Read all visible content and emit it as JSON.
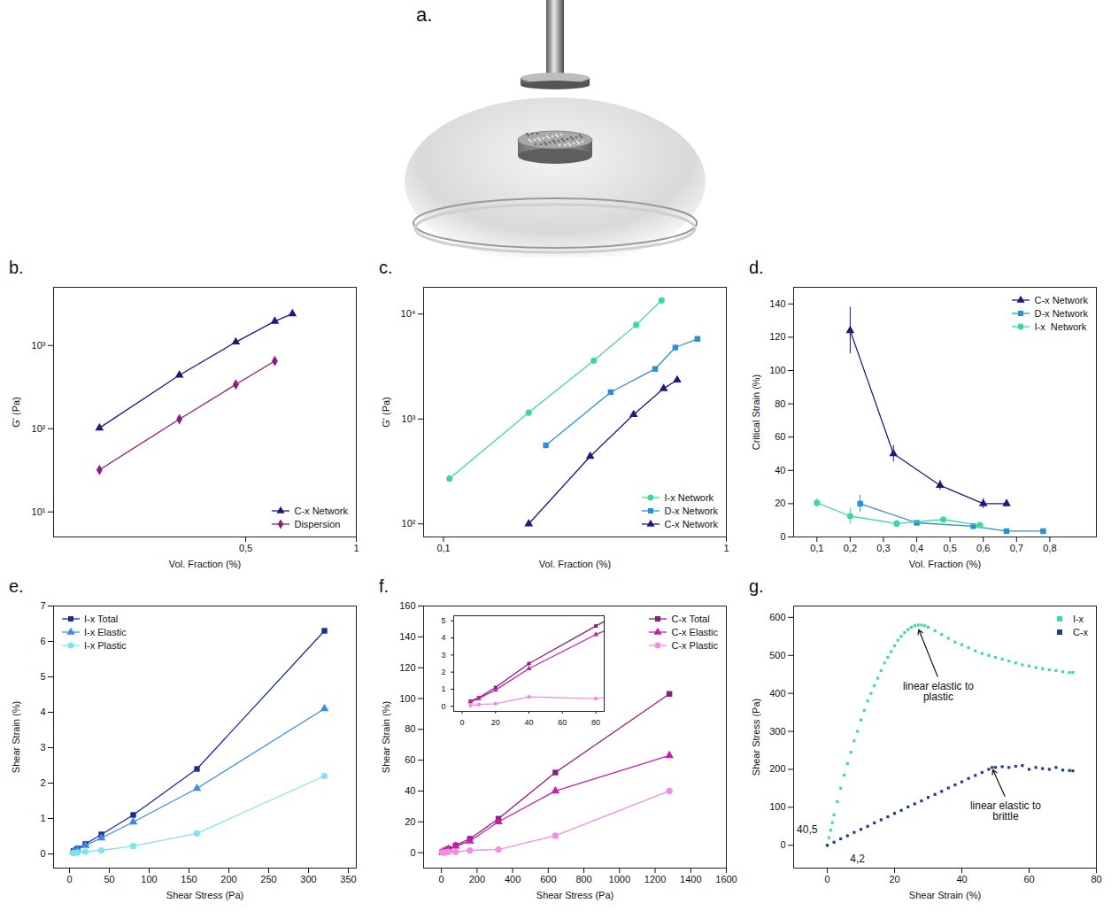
{
  "illustration": {
    "panel_label": "a."
  },
  "chart_data": [
    {
      "panel_label": "b.",
      "type": "line",
      "log": true,
      "xlabel": "Vol. Fraction (%)",
      "ylabel": "G' (Pa)",
      "xlim": [
        0.15,
        1
      ],
      "ylim": [
        5,
        5000
      ],
      "xticks": [
        {
          "value": 0.5,
          "label": "0,5"
        },
        1
      ],
      "yticks": [
        {
          "value": 10,
          "label": "10¹"
        },
        {
          "value": 100,
          "label": "10²"
        },
        {
          "value": 1000,
          "label": "10³"
        }
      ],
      "legend": "bottom right",
      "series": [
        {
          "name": "C-x Network",
          "color": "#1b1b7d",
          "marker": "triangle",
          "x": [
            0.2,
            0.33,
            0.47,
            0.6,
            0.67
          ],
          "values": [
            102,
            440,
            1100,
            1950,
            2400
          ]
        },
        {
          "name": "Dispersion",
          "color": "#8e1b7e",
          "marker": "diamond",
          "x": [
            0.2,
            0.33,
            0.47,
            0.6
          ],
          "values": [
            32,
            130,
            340,
            650
          ]
        }
      ]
    },
    {
      "panel_label": "c.",
      "type": "line",
      "log": true,
      "xlabel": "Vol. Fraction (%)",
      "ylabel": "G' (Pa)",
      "xlim": [
        0.085,
        1
      ],
      "ylim": [
        75,
        18000
      ],
      "xticks": [
        {
          "value": 0.1,
          "label": "0,1"
        },
        1
      ],
      "yticks": [
        {
          "value": 100,
          "label": "10²"
        },
        {
          "value": 1000,
          "label": "10³"
        },
        {
          "value": 10000,
          "label": "10⁴"
        }
      ],
      "legend": "bottom right",
      "series": [
        {
          "name": "I-x Network",
          "color": "#3fd89c",
          "marker": "circle",
          "x": [
            0.105,
            0.2,
            0.34,
            0.48,
            0.59
          ],
          "values": [
            270,
            1150,
            3600,
            7900,
            13500
          ]
        },
        {
          "name": "D-x Network",
          "color": "#2b8fd4",
          "marker": "square",
          "x": [
            0.23,
            0.39,
            0.56,
            0.66,
            0.79
          ],
          "values": [
            560,
            1800,
            3000,
            4800,
            5800
          ]
        },
        {
          "name": "C-x Network",
          "color": "#1b1b7d",
          "marker": "triangle",
          "x": [
            0.2,
            0.33,
            0.47,
            0.6,
            0.67
          ],
          "values": [
            100,
            440,
            1100,
            1950,
            2350
          ]
        }
      ]
    },
    {
      "panel_label": "d.",
      "type": "line",
      "xlabel": "Vol. Fraction (%)",
      "ylabel": "Critical Strain (%)",
      "xlim": [
        0.03,
        0.94
      ],
      "ylim": [
        0,
        150
      ],
      "xticks": [
        {
          "value": 0.1,
          "label": "0,1"
        },
        {
          "value": 0.2,
          "label": "0,2"
        },
        {
          "value": 0.3,
          "label": "0,3"
        },
        {
          "value": 0.4,
          "label": "0,4"
        },
        {
          "value": 0.5,
          "label": "0,5"
        },
        {
          "value": 0.6,
          "label": "0,6"
        },
        {
          "value": 0.7,
          "label": "0,7"
        },
        {
          "value": 0.8,
          "label": "0,8"
        }
      ],
      "yticks": [
        0,
        20,
        40,
        60,
        80,
        100,
        120,
        140
      ],
      "legend": "top right",
      "series": [
        {
          "name": "C-x Network",
          "color": "#1b1b7d",
          "marker": "triangle",
          "x": [
            0.2,
            0.33,
            0.47,
            0.6,
            0.67
          ],
          "values": [
            124,
            50,
            31,
            20,
            20
          ],
          "errors": [
            14,
            5,
            3,
            3,
            2
          ]
        },
        {
          "name": "D-x Network",
          "color": "#2b8fd4",
          "marker": "square",
          "x": [
            0.23,
            0.4,
            0.57,
            0.67,
            0.78
          ],
          "values": [
            20,
            8.5,
            6.5,
            3.5,
            3.5
          ],
          "errors": [
            5,
            1,
            1,
            0.5,
            0.5
          ]
        },
        {
          "name": "I-x  Network",
          "color": "#3fd89c",
          "marker": "circle",
          "x": [
            0.1,
            0.2,
            0.34,
            0.48,
            0.59
          ],
          "values": [
            20.5,
            12.5,
            8,
            10.5,
            7
          ],
          "errors": [
            2.5,
            5,
            2,
            1.5,
            2
          ]
        }
      ]
    },
    {
      "panel_label": "e.",
      "type": "line",
      "xlabel": "Shear Stress (Pa)",
      "ylabel": "Shear Strain (%)",
      "xlim": [
        -20,
        360
      ],
      "ylim": [
        -0.4,
        7
      ],
      "xticks": [
        0,
        50,
        100,
        150,
        200,
        250,
        300,
        350
      ],
      "yticks": [
        0,
        1,
        2,
        3,
        4,
        5,
        6,
        7
      ],
      "legend": "top left",
      "series": [
        {
          "name": "I-x Total",
          "color": "#1c2a9c",
          "marker": "square",
          "x": [
            5,
            10,
            20,
            40,
            80,
            160,
            320
          ],
          "values": [
            0.08,
            0.15,
            0.28,
            0.55,
            1.1,
            2.4,
            6.3
          ]
        },
        {
          "name": "I-x Elastic",
          "color": "#3a8ee0",
          "marker": "triangle",
          "x": [
            5,
            10,
            20,
            40,
            80,
            160,
            320
          ],
          "values": [
            0.07,
            0.12,
            0.24,
            0.45,
            0.9,
            1.85,
            4.1
          ]
        },
        {
          "name": "I-x Plastic",
          "color": "#7fe3f5",
          "marker": "circle",
          "x": [
            5,
            10,
            20,
            40,
            80,
            160,
            320
          ],
          "values": [
            0.02,
            0.04,
            0.06,
            0.1,
            0.22,
            0.58,
            2.2
          ]
        }
      ]
    },
    {
      "panel_label": "f.",
      "type": "line",
      "xlabel": "Shear Stress (Pa)",
      "ylabel": "Shear Strain (%)",
      "xlim": [
        -100,
        1600
      ],
      "ylim": [
        -10,
        160
      ],
      "xticks": [
        0,
        200,
        400,
        600,
        800,
        1000,
        1200,
        1400,
        1600
      ],
      "yticks": [
        0,
        20,
        40,
        60,
        80,
        100,
        120,
        140,
        160
      ],
      "legend": "top right",
      "inset": {
        "xlim": [
          -5,
          85
        ],
        "ylim": [
          -0.3,
          5.3
        ],
        "xticks": [
          0,
          20,
          40,
          60,
          80
        ],
        "yticks": [
          0,
          1,
          2,
          3,
          4,
          5
        ]
      },
      "series": [
        {
          "name": "C-x Total",
          "color": "#8e1b7e",
          "marker": "square",
          "x": [
            5,
            10,
            20,
            40,
            80,
            160,
            320,
            640,
            1280
          ],
          "values": [
            0.3,
            0.5,
            1.1,
            2.5,
            4.7,
            9,
            22,
            52,
            103
          ]
        },
        {
          "name": "C-x Elastic",
          "color": "#c51fae",
          "marker": "triangle",
          "x": [
            5,
            10,
            20,
            40,
            80,
            160,
            320,
            640,
            1280
          ],
          "values": [
            0.25,
            0.45,
            0.95,
            2.2,
            4.2,
            7.5,
            20,
            40,
            63
          ]
        },
        {
          "name": "C-x Plastic",
          "color": "#f28de3",
          "marker": "circle",
          "x": [
            5,
            10,
            20,
            40,
            80,
            160,
            320,
            640,
            1280
          ],
          "values": [
            0.05,
            0.1,
            0.15,
            0.55,
            0.45,
            1.5,
            2,
            11,
            40
          ]
        }
      ]
    },
    {
      "panel_label": "g.",
      "type": "scatter",
      "xlabel": "Shear Strain (%)",
      "ylabel": "Shear Stress (Pa)",
      "xlim": [
        -10,
        80
      ],
      "ylim": [
        -60,
        630
      ],
      "xticks": [
        0,
        20,
        40,
        60,
        80
      ],
      "yticks": [
        0,
        100,
        200,
        300,
        400,
        500,
        600
      ],
      "legend": "top right",
      "annotations": [
        {
          "text": "linear elastic to plastic",
          "x": 33,
          "y": 440,
          "arrow_to": [
            27,
            572
          ]
        },
        {
          "text": "linear elastic to brittle",
          "x": 53,
          "y": 125,
          "arrow_to": [
            49,
            203
          ]
        },
        {
          "text": "40,5",
          "x": -6,
          "y": 40
        },
        {
          "text": "4,2",
          "x": 9,
          "y": -35
        }
      ],
      "series": [
        {
          "name": "I-x",
          "color": "#3ddc9c",
          "marker": "square",
          "x": [
            0,
            0.5,
            1,
            1.5,
            2,
            3,
            4,
            5,
            6,
            7,
            8,
            9,
            10,
            11,
            12,
            13,
            14,
            15,
            16,
            17,
            18,
            19,
            20,
            21,
            22,
            23,
            24,
            25,
            26,
            27,
            28,
            29,
            30,
            32,
            34,
            36,
            38,
            40,
            42,
            44,
            46,
            48,
            50,
            52,
            54,
            56,
            58,
            60,
            62,
            64,
            66,
            68,
            70,
            72,
            73
          ],
          "values": [
            0,
            20,
            40,
            60,
            80,
            115,
            150,
            185,
            215,
            245,
            275,
            300,
            330,
            355,
            380,
            400,
            420,
            440,
            460,
            480,
            495,
            510,
            525,
            540,
            550,
            560,
            568,
            574,
            578,
            580,
            580,
            578,
            574,
            565,
            555,
            545,
            535,
            528,
            520,
            512,
            505,
            500,
            495,
            490,
            485,
            480,
            475,
            472,
            468,
            465,
            462,
            460,
            457,
            455,
            455
          ]
        },
        {
          "name": "C-x",
          "color": "#1f3f80",
          "marker": "square",
          "x": [
            0,
            2,
            4,
            6,
            8,
            10,
            12,
            14,
            16,
            18,
            20,
            22,
            24,
            26,
            28,
            30,
            32,
            34,
            36,
            38,
            40,
            42,
            44,
            46,
            48,
            49,
            50,
            52,
            54,
            56,
            58,
            60,
            62,
            64,
            66,
            68,
            70,
            72,
            73
          ],
          "values": [
            0,
            8,
            17,
            25,
            34,
            42,
            50,
            59,
            67,
            75,
            84,
            92,
            101,
            109,
            117,
            126,
            134,
            142,
            151,
            159,
            167,
            176,
            184,
            192,
            200,
            205,
            205,
            207,
            205,
            208,
            210,
            200,
            205,
            202,
            200,
            205,
            198,
            197,
            196
          ]
        }
      ]
    }
  ]
}
